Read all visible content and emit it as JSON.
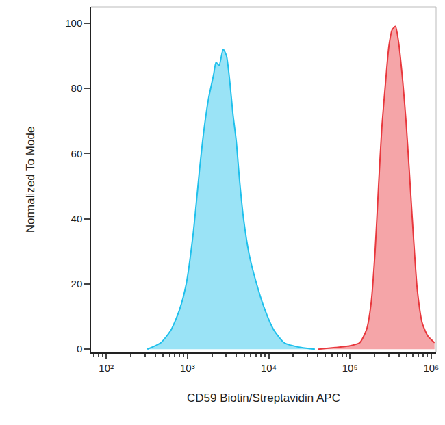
{
  "chart_data": {
    "type": "area",
    "x_label": "CD59 Biotin/Streptavidin APC",
    "y_label": "Normalized To Mode",
    "log": "x",
    "grid": false,
    "xlim": [
      65,
      1150000
    ],
    "xticks": [
      {
        "value": 100,
        "label": "10²"
      },
      {
        "value": 1000,
        "label": "10³"
      },
      {
        "value": 10000,
        "label": "10⁴"
      },
      {
        "value": 100000,
        "label": "10⁵"
      },
      {
        "value": 1000000,
        "label": "10⁶"
      }
    ],
    "ylim": [
      -1,
      105
    ],
    "yticks": [
      0,
      20,
      40,
      60,
      80,
      100
    ],
    "series": [
      {
        "color": "#1fc0ec",
        "x": [
          320,
          470,
          630,
          795,
          965,
          1170,
          1420,
          1590,
          1820,
          2090,
          2250,
          2450,
          2750,
          3020,
          3320,
          3630,
          3980,
          4370,
          4900,
          5750,
          6920,
          8710,
          11500,
          15500,
          25100,
          37000
        ],
        "values": [
          0,
          2,
          6,
          12,
          20,
          35,
          56,
          67,
          77,
          84,
          88,
          87,
          92,
          90,
          82,
          72,
          64,
          52,
          40,
          29,
          21,
          13,
          6,
          2,
          0.5,
          0
        ]
      },
      {
        "color": "#e8383d",
        "x": [
          40700,
          66000,
          98000,
          132000,
          160000,
          182000,
          204000,
          225000,
          247000,
          275000,
          302000,
          331000,
          363000,
          398000,
          447000,
          490000,
          537000,
          603000,
          676000,
          776000,
          912000,
          1100000
        ],
        "values": [
          0,
          0.5,
          1,
          2,
          6,
          14,
          30,
          50,
          68,
          82,
          93,
          98,
          99,
          94,
          82,
          70,
          55,
          35,
          18,
          8,
          4,
          2
        ]
      }
    ]
  }
}
